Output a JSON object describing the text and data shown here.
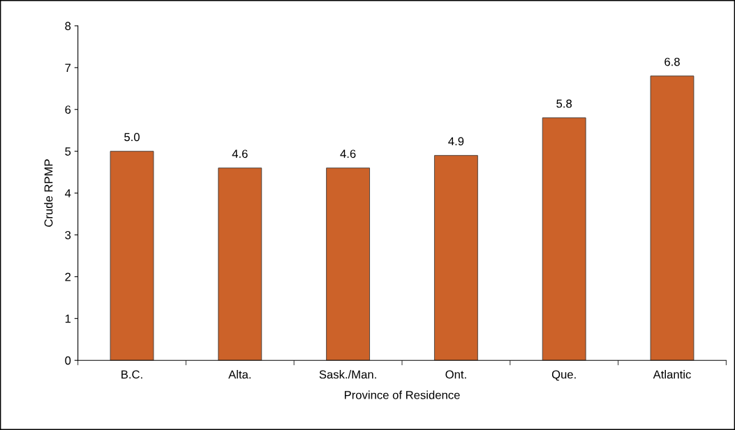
{
  "chart_data": {
    "type": "bar",
    "xlabel": "Province of Residence",
    "ylabel": "Crude RPMP",
    "categories": [
      "B.C.",
      "Alta.",
      "Sask./Man.",
      "Ont.",
      "Que.",
      "Atlantic"
    ],
    "values": [
      5.0,
      4.6,
      4.6,
      4.9,
      5.8,
      6.8
    ],
    "value_labels": [
      "5.0",
      "4.6",
      "4.6",
      "4.9",
      "5.8",
      "6.8"
    ],
    "color": "#cc6229",
    "ylim": [
      0,
      8
    ],
    "yticks": [
      0,
      1,
      2,
      3,
      4,
      5,
      6,
      7,
      8
    ],
    "grid": false,
    "legend": false
  }
}
